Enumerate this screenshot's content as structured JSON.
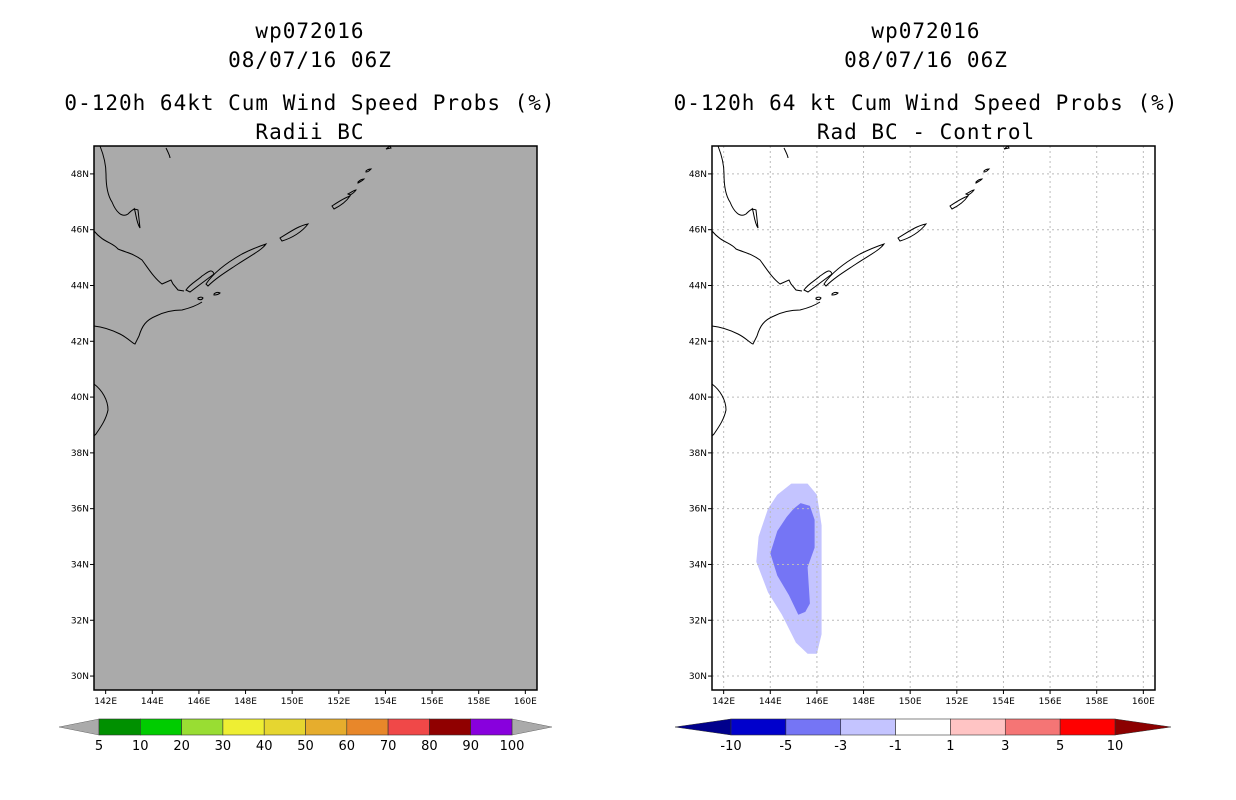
{
  "panels": [
    {
      "title_line1": "wp072016",
      "title_line2": "08/07/16 06Z",
      "title_line3": "0-120h 64kt Cum Wind Speed Probs (%)",
      "title_line4": "Radii BC",
      "background": "#aaaaaa",
      "grid": false
    },
    {
      "title_line1": "wp072016",
      "title_line2": "08/07/16 06Z",
      "title_line3": "0-120h 64 kt Cum Wind Speed Probs (%)",
      "title_line4": "Rad BC - Control",
      "background": "#ffffff",
      "grid": true
    }
  ],
  "chart_data": [
    {
      "type": "heatmap",
      "title": "0-120h 64kt Cum Wind Speed Probs (%) — Radii BC",
      "xlim": [
        141.5,
        160.5
      ],
      "ylim": [
        29.5,
        49
      ],
      "x_ticks": [
        "142E",
        "144E",
        "146E",
        "148E",
        "150E",
        "152E",
        "154E",
        "156E",
        "158E",
        "160E"
      ],
      "y_ticks": [
        "30N",
        "32N",
        "34N",
        "36N",
        "38N",
        "40N",
        "42N",
        "44N",
        "46N",
        "48N"
      ],
      "field": "no probabilities above 5% (uniform grey)",
      "colorbar": {
        "labels": [
          "5",
          "10",
          "20",
          "30",
          "40",
          "50",
          "60",
          "70",
          "80",
          "90",
          "100"
        ],
        "colors": [
          "#009000",
          "#00cc00",
          "#99dd33",
          "#eeee33",
          "#e6d630",
          "#e6ad2d",
          "#e8872a",
          "#f04848",
          "#900000",
          "#8800dd"
        ],
        "end_color": "#aaaaaa"
      }
    },
    {
      "type": "heatmap",
      "title": "0-120h 64 kt Cum Wind Speed Probs (%) — Rad BC - Control",
      "xlim": [
        141.5,
        160.5
      ],
      "ylim": [
        29.5,
        49
      ],
      "x_ticks": [
        "142E",
        "144E",
        "146E",
        "148E",
        "150E",
        "152E",
        "154E",
        "156E",
        "158E",
        "160E"
      ],
      "y_ticks": [
        "30N",
        "32N",
        "34N",
        "36N",
        "38N",
        "40N",
        "42N",
        "44N",
        "46N",
        "48N"
      ],
      "contours": [
        {
          "level": "-3 to -1",
          "color": "#c4c4ff",
          "lonlat": [
            [
              144.9,
              36.9
            ],
            [
              145.6,
              36.9
            ],
            [
              146.0,
              36.5
            ],
            [
              146.2,
              35.4
            ],
            [
              146.2,
              33.5
            ],
            [
              146.2,
              31.5
            ],
            [
              146.0,
              30.8
            ],
            [
              145.6,
              30.8
            ],
            [
              145.1,
              31.2
            ],
            [
              144.5,
              32.2
            ],
            [
              143.9,
              33.0
            ],
            [
              143.4,
              34.1
            ],
            [
              143.5,
              35.0
            ],
            [
              143.9,
              36.0
            ],
            [
              144.3,
              36.5
            ]
          ]
        },
        {
          "level": "-5 to -3",
          "color": "#7575f5",
          "lonlat": [
            [
              145.0,
              36.0
            ],
            [
              145.3,
              36.2
            ],
            [
              145.7,
              36.1
            ],
            [
              145.9,
              35.6
            ],
            [
              145.9,
              34.6
            ],
            [
              145.6,
              33.9
            ],
            [
              145.7,
              32.6
            ],
            [
              145.5,
              32.3
            ],
            [
              145.2,
              32.2
            ],
            [
              144.8,
              32.9
            ],
            [
              144.3,
              33.6
            ],
            [
              144.0,
              34.4
            ],
            [
              144.3,
              35.2
            ],
            [
              144.7,
              35.7
            ]
          ]
        }
      ],
      "colorbar": {
        "labels": [
          "-10",
          "-5",
          "-3",
          "-1",
          "1",
          "3",
          "5",
          "10"
        ],
        "colors": [
          "#0000cc",
          "#7575f5",
          "#c4c4ff",
          "#ffffff",
          "#ffc4c4",
          "#f57575",
          "#ff0000"
        ],
        "low_end_color": "#00008c",
        "high_end_color": "#8c0000"
      }
    }
  ]
}
